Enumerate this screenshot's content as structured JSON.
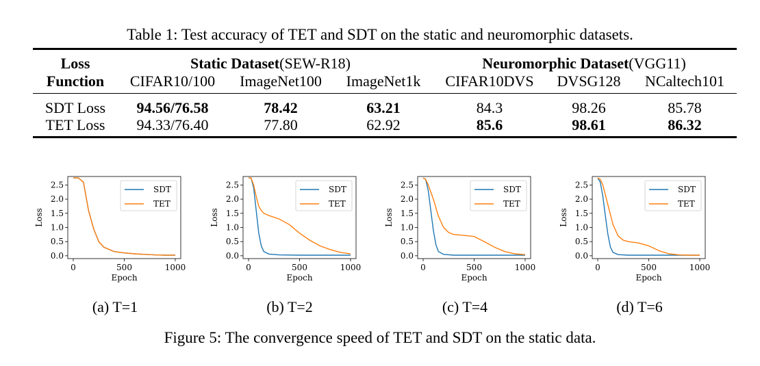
{
  "table": {
    "caption": "Table 1: Test accuracy of TET and SDT on the static and neuromorphic datasets.",
    "loss_header_line1": "Loss",
    "loss_header_line2": "Function",
    "static_group": "Static Dataset",
    "static_model": "(SEW-R18)",
    "neuro_group": "Neuromorphic Dataset",
    "neuro_model": "(VGG11)",
    "columns": [
      "CIFAR10/100",
      "ImageNet100",
      "ImageNet1k",
      "CIFAR10DVS",
      "DVSG128",
      "NCaltech101"
    ],
    "rows": [
      {
        "label": "SDT Loss",
        "values": [
          "94.56/76.58",
          "78.42",
          "63.21",
          "84.3",
          "98.26",
          "85.78"
        ],
        "bold": [
          true,
          true,
          true,
          false,
          false,
          false
        ]
      },
      {
        "label": "TET Loss",
        "values": [
          "94.33/76.40",
          "77.80",
          "62.92",
          "85.6",
          "98.61",
          "86.32"
        ],
        "bold": [
          false,
          false,
          false,
          true,
          true,
          true
        ]
      }
    ]
  },
  "figure": {
    "caption": "Figure 5: The convergence speed of TET and SDT on the static data.",
    "xlabel": "Epoch",
    "ylabel": "Loss",
    "legend": [
      "SDT",
      "TET"
    ],
    "colors": {
      "SDT": "#1f77b4",
      "TET": "#ff7f0e"
    },
    "xticks": [
      "0",
      "500",
      "1000"
    ],
    "yticks": [
      "0.0",
      "0.5",
      "1.0",
      "1.5",
      "2.0",
      "2.5"
    ]
  },
  "chart_data": [
    {
      "type": "line",
      "title": "(a) T=1",
      "xlabel": "Epoch",
      "ylabel": "Loss",
      "xlim": [
        0,
        1000
      ],
      "ylim": [
        0,
        2.8
      ],
      "legend_position": "top-right",
      "series": [
        {
          "name": "SDT",
          "x": [
            0,
            50,
            100,
            150,
            200,
            250,
            300,
            400,
            500,
            600,
            700,
            800,
            900,
            1000
          ],
          "y": [
            2.75,
            2.75,
            2.6,
            1.6,
            0.95,
            0.5,
            0.3,
            0.15,
            0.1,
            0.07,
            0.05,
            0.03,
            0.02,
            0.02
          ]
        },
        {
          "name": "TET",
          "x": [
            0,
            50,
            100,
            150,
            200,
            250,
            300,
            400,
            500,
            600,
            700,
            800,
            900,
            1000
          ],
          "y": [
            2.75,
            2.75,
            2.6,
            1.6,
            0.95,
            0.5,
            0.3,
            0.15,
            0.1,
            0.07,
            0.05,
            0.03,
            0.02,
            0.02
          ]
        }
      ]
    },
    {
      "type": "line",
      "title": "(b) T=2",
      "xlabel": "Epoch",
      "ylabel": "Loss",
      "xlim": [
        0,
        1000
      ],
      "ylim": [
        0,
        2.8
      ],
      "legend_position": "top-right",
      "series": [
        {
          "name": "SDT",
          "x": [
            0,
            25,
            50,
            75,
            100,
            125,
            150,
            200,
            300,
            500,
            700,
            1000
          ],
          "y": [
            2.75,
            2.75,
            2.4,
            1.6,
            0.8,
            0.35,
            0.15,
            0.06,
            0.03,
            0.02,
            0.02,
            0.02
          ]
        },
        {
          "name": "TET",
          "x": [
            0,
            25,
            50,
            75,
            100,
            125,
            150,
            200,
            300,
            400,
            500,
            600,
            700,
            800,
            900,
            1000
          ],
          "y": [
            2.75,
            2.75,
            2.5,
            2.1,
            1.75,
            1.6,
            1.5,
            1.42,
            1.3,
            1.1,
            0.8,
            0.55,
            0.35,
            0.22,
            0.12,
            0.07
          ]
        }
      ]
    },
    {
      "type": "line",
      "title": "(c) T=4",
      "xlabel": "Epoch",
      "ylabel": "Loss",
      "xlim": [
        0,
        1000
      ],
      "ylim": [
        0,
        2.8
      ],
      "legend_position": "top-right",
      "series": [
        {
          "name": "SDT",
          "x": [
            0,
            25,
            50,
            75,
            100,
            125,
            150,
            200,
            300,
            500,
            700,
            1000
          ],
          "y": [
            2.75,
            2.7,
            2.3,
            1.6,
            0.9,
            0.4,
            0.15,
            0.05,
            0.02,
            0.02,
            0.02,
            0.02
          ]
        },
        {
          "name": "TET",
          "x": [
            0,
            25,
            50,
            100,
            150,
            200,
            250,
            300,
            400,
            500,
            600,
            700,
            800,
            900,
            1000
          ],
          "y": [
            2.75,
            2.7,
            2.5,
            2.0,
            1.4,
            1.0,
            0.82,
            0.75,
            0.72,
            0.68,
            0.5,
            0.3,
            0.15,
            0.07,
            0.04
          ]
        }
      ]
    },
    {
      "type": "line",
      "title": "(d) T=6",
      "xlabel": "Epoch",
      "ylabel": "Loss",
      "xlim": [
        0,
        1000
      ],
      "ylim": [
        0,
        2.8
      ],
      "legend_position": "top-right",
      "series": [
        {
          "name": "SDT",
          "x": [
            0,
            25,
            50,
            75,
            100,
            125,
            150,
            200,
            300,
            500,
            700,
            1000
          ],
          "y": [
            2.75,
            2.6,
            2.1,
            1.4,
            0.75,
            0.3,
            0.12,
            0.04,
            0.02,
            0.02,
            0.02,
            0.02
          ]
        },
        {
          "name": "TET",
          "x": [
            0,
            25,
            50,
            100,
            150,
            200,
            250,
            300,
            400,
            500,
            600,
            700,
            800,
            900,
            1000
          ],
          "y": [
            2.75,
            2.7,
            2.5,
            1.8,
            1.1,
            0.7,
            0.55,
            0.5,
            0.45,
            0.35,
            0.18,
            0.07,
            0.03,
            0.02,
            0.02
          ]
        }
      ]
    }
  ]
}
